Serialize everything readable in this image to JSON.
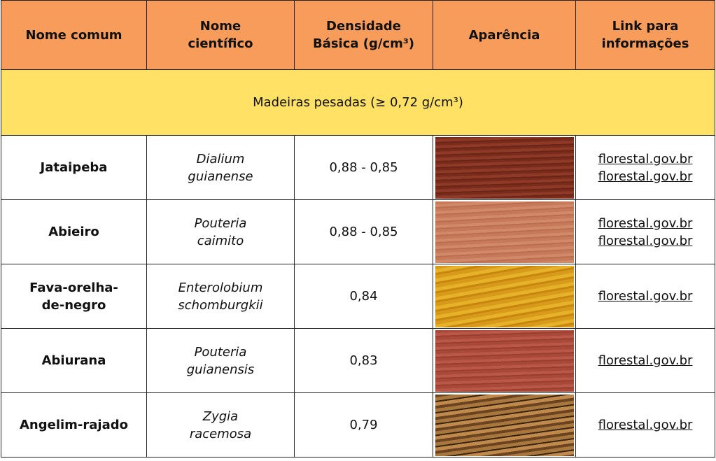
{
  "header": {
    "cells": [
      [
        "Nome comum"
      ],
      [
        "Nome",
        "científico"
      ],
      [
        "Densidade",
        "Básica (g/cm³)"
      ],
      [
        "Aparência"
      ],
      [
        "Link para",
        "informações"
      ]
    ]
  },
  "section": {
    "label": "Madeiras pesadas (≥ 0,72 g/cm³)"
  },
  "rows": [
    {
      "common": [
        "Jataipeba"
      ],
      "scientific": [
        "Dialium",
        "guianense"
      ],
      "density": "0,88 - 0,85",
      "links": [
        "florestal.gov.br",
        "florestal.gov.br"
      ]
    },
    {
      "common": [
        "Abieiro"
      ],
      "scientific": [
        "Pouteria",
        "caimito"
      ],
      "density": "0,88 - 0,85",
      "links": [
        "florestal.gov.br",
        "florestal.gov.br"
      ]
    },
    {
      "common": [
        "Fava-orelha-",
        "de-negro"
      ],
      "scientific": [
        "Enterolobium",
        "schomburgkii"
      ],
      "density": "0,84",
      "links": [
        "florestal.gov.br"
      ]
    },
    {
      "common": [
        "Abiurana"
      ],
      "scientific": [
        "Pouteria",
        "guianensis"
      ],
      "density": "0,83",
      "links": [
        "florestal.gov.br"
      ]
    },
    {
      "common": [
        "Angelim-rajado"
      ],
      "scientific": [
        "Zygia",
        "racemosa"
      ],
      "density": "0,79",
      "links": [
        "florestal.gov.br"
      ]
    }
  ]
}
